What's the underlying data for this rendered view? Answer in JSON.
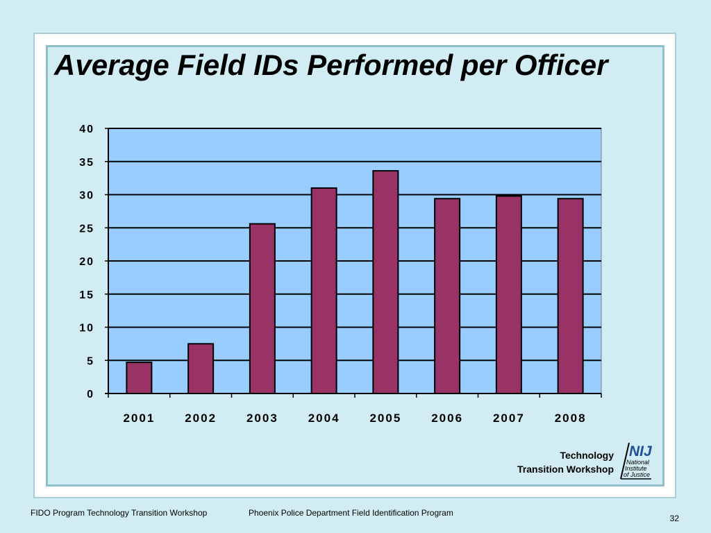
{
  "slide": {
    "title": "Average Field IDs Performed per Officer",
    "footer_left": "FIDO Program Technology Transition Workshop",
    "footer_center": "Phoenix Police Department Field Identification Program",
    "page_number": "32"
  },
  "logo": {
    "line1": "Technology",
    "line2": "Transition Workshop",
    "mark": "NIJ",
    "name_lines": [
      "National",
      "Institute",
      "of Justice"
    ]
  },
  "colors": {
    "background": "#d1ecf3",
    "plot_background": "#99ccff",
    "bar_fill": "#993366",
    "bar_stroke": "#000000",
    "logo_blue": "#1f4e9a"
  },
  "chart_data": {
    "type": "bar",
    "categories": [
      "2001",
      "2002",
      "2003",
      "2004",
      "2005",
      "2006",
      "2007",
      "2008"
    ],
    "values": [
      4.7,
      7.5,
      25.6,
      31.0,
      33.6,
      29.4,
      29.8,
      29.4
    ],
    "ylim": [
      0,
      40
    ],
    "yticks": [
      0,
      5,
      10,
      15,
      20,
      25,
      30,
      35,
      40
    ],
    "grid": true,
    "legend": "none"
  }
}
